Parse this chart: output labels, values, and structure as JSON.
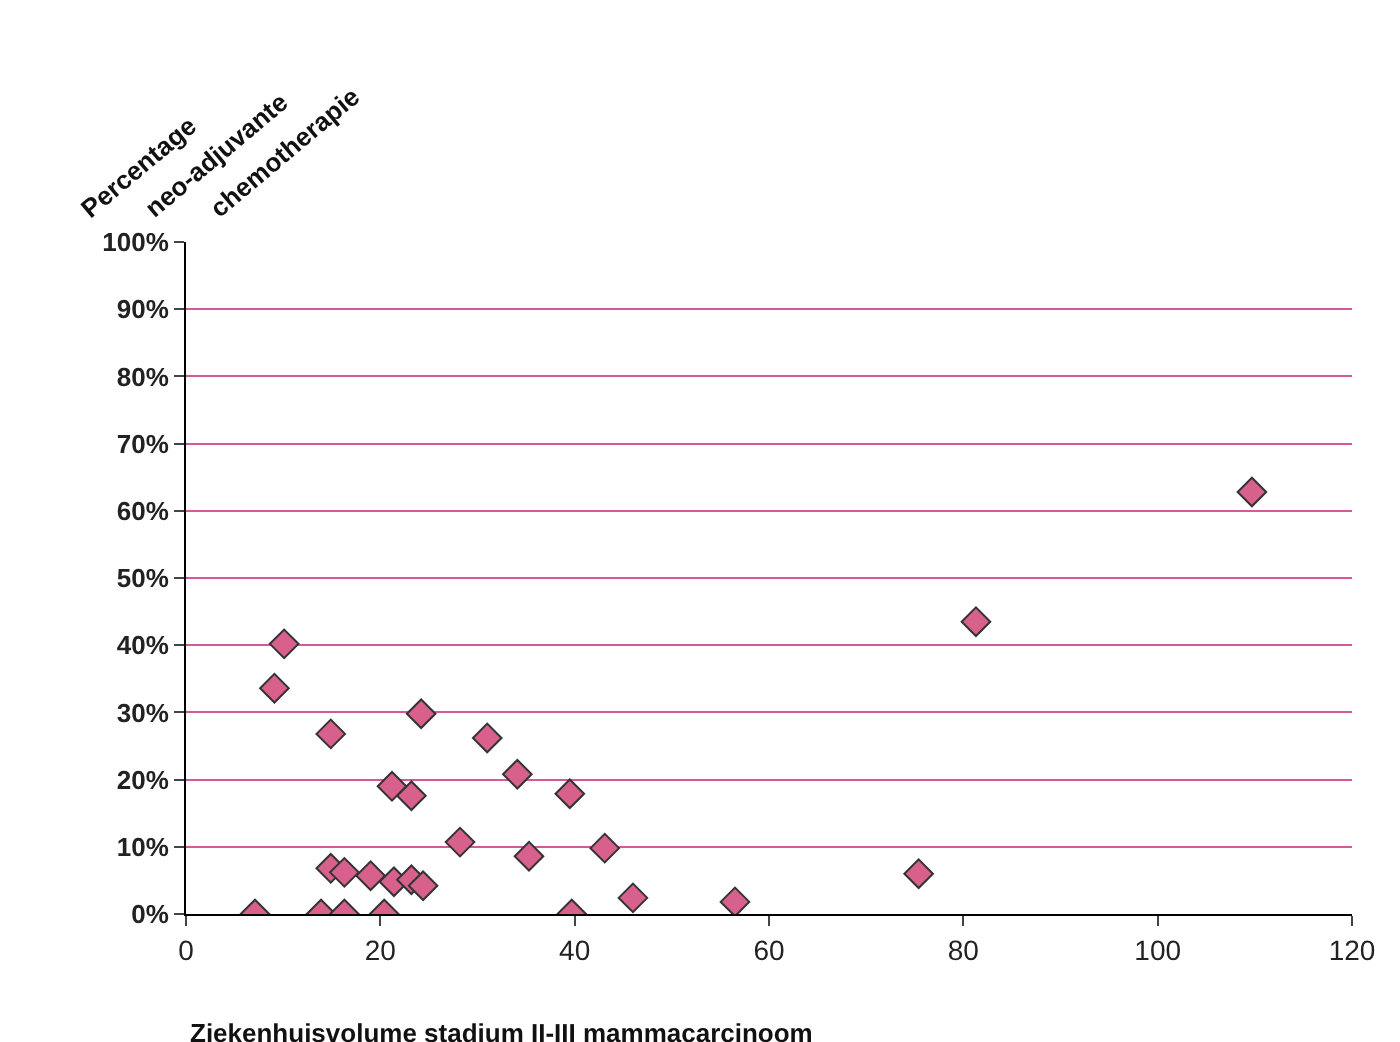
{
  "chart_data": {
    "type": "scatter",
    "xlabel": "Ziekenhuisvolume stadium II-III mammacarcinoom",
    "ylabel": "Percentage\nneo-adjuvante\nchemotherapie",
    "x": [
      7.1,
      9.1,
      10.1,
      14.9,
      13.9,
      14.9,
      16.3,
      16.3,
      19,
      20.4,
      21.2,
      21.4,
      23.2,
      23.2,
      24.2,
      24.4,
      28.2,
      31,
      34.1,
      35.3,
      39.5,
      39.7,
      43.1,
      46,
      56.5,
      75.4,
      81.3,
      109.7
    ],
    "series": [
      {
        "color": "#d8608c",
        "values": [
          0,
          33.6,
          40.2,
          26.8,
          0,
          6.8,
          6.2,
          0,
          5.7,
          0,
          19,
          4.8,
          17.6,
          5.1,
          29.8,
          4.2,
          10.7,
          26.2,
          20.8,
          8.6,
          17.9,
          0,
          9.8,
          2.4,
          1.8,
          6,
          43.5,
          62.8
        ]
      }
    ],
    "marker": "diamond",
    "xlim": [
      0,
      120
    ],
    "xticks": [
      0,
      20,
      40,
      60,
      80,
      100,
      120
    ],
    "ylim": [
      0,
      100
    ],
    "yticks": [
      {
        "value": 0,
        "label": "0%"
      },
      {
        "value": 10,
        "label": "10%"
      },
      {
        "value": 20,
        "label": "20%"
      },
      {
        "value": 30,
        "label": "30%"
      },
      {
        "value": 40,
        "label": "40%"
      },
      {
        "value": 50,
        "label": "50%"
      },
      {
        "value": 60,
        "label": "60%"
      },
      {
        "value": 70,
        "label": "70%"
      },
      {
        "value": 80,
        "label": "80%"
      },
      {
        "value": 90,
        "label": "90%"
      },
      {
        "value": 100,
        "label": "100%"
      }
    ],
    "grid": "y",
    "legend": false
  }
}
